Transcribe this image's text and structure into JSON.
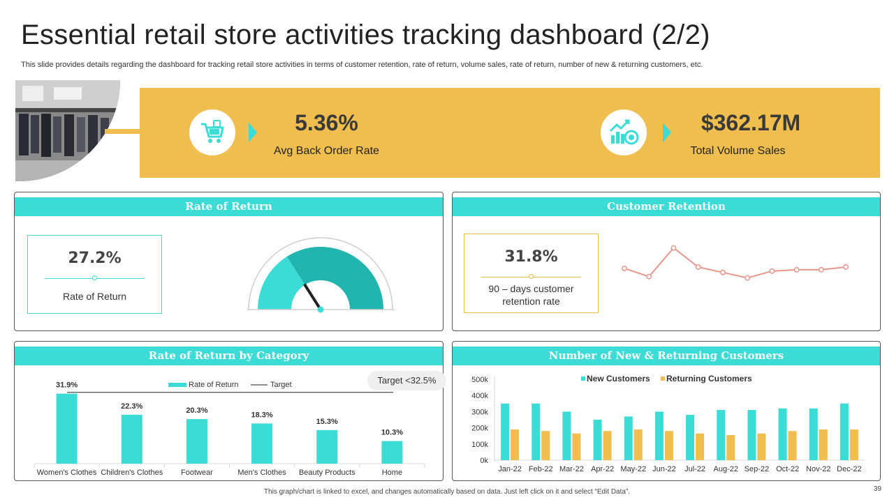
{
  "title": "Essential retail store activities tracking dashboard (2/2)",
  "subtitle": "This slide provides details regarding the dashboard for tracking retail store activities in terms of customer retention, rate of return, volume sales, rate of return, number of new & returning customers, etc.",
  "colors": {
    "accent": "#3bdbd6",
    "gold": "#efbe4e",
    "gauge_dark": "#22b5b0",
    "line": "#e8968a"
  },
  "kpis": [
    {
      "value": "5.36%",
      "label": "Avg Back Order Rate",
      "icon": "shopping-cart-icon"
    },
    {
      "value": "$362.17M",
      "label": "Total Volume Sales",
      "icon": "growth-chart-coins-icon"
    }
  ],
  "rate_of_return": {
    "header": "Rate of Return",
    "value": "27.2%",
    "label": "Rate of Return",
    "gauge_fraction": 0.32
  },
  "customer_retention": {
    "header": "Customer Retention",
    "value": "31.8%",
    "label_line1": "90 – days customer",
    "label_line2": "retention rate"
  },
  "category_panel": {
    "header": "Rate of Return by Category",
    "target_pill": "Target  <32.5%"
  },
  "customers_panel": {
    "header": "Number of New & Returning Customers"
  },
  "footer": "This graph/chart is linked to excel, and changes automatically based on data. Just left click on it and select “Edit Data”.",
  "page_number": "39",
  "chart_data": [
    {
      "type": "line",
      "title": "Customer Retention",
      "x": [
        1,
        2,
        3,
        4,
        5,
        6,
        7,
        8,
        9,
        10
      ],
      "values": [
        31,
        25,
        46,
        32,
        28,
        24,
        29,
        30,
        30,
        32
      ],
      "ylim": [
        10,
        55
      ]
    },
    {
      "type": "bar",
      "title": "Rate of Return by Category",
      "categories": [
        "Women's Clothes",
        "Children's Clothes",
        "Footwear",
        "Men's Clothes",
        "Beauty Products",
        "Home"
      ],
      "values": [
        31.9,
        22.3,
        20.3,
        18.3,
        15.3,
        10.3
      ],
      "data_labels": [
        "31.9%",
        "22.3%",
        "20.3%",
        "18.3%",
        "15.3%",
        "10.3%"
      ],
      "target": 32.5,
      "ylim": [
        0,
        34
      ],
      "legend": [
        "Rate of Return",
        "Target"
      ]
    },
    {
      "type": "bar",
      "title": "Number of New & Returning Customers",
      "categories": [
        "Jan-22",
        "Feb-22",
        "Mar-22",
        "Apr-22",
        "May-22",
        "Jun-22",
        "Jul-22",
        "Aug-22",
        "Sep-22",
        "Oct-22",
        "Nov-22",
        "Dec-22"
      ],
      "series": [
        {
          "name": "New Customers",
          "values": [
            350,
            350,
            300,
            250,
            270,
            300,
            280,
            310,
            310,
            320,
            320,
            350
          ]
        },
        {
          "name": "Returning Customers",
          "values": [
            190,
            180,
            165,
            180,
            190,
            180,
            165,
            155,
            165,
            180,
            190,
            190
          ]
        }
      ],
      "yticks": [
        "0k",
        "100k",
        "200k",
        "300k",
        "400k",
        "500k"
      ],
      "ylim": [
        0,
        500
      ]
    }
  ]
}
